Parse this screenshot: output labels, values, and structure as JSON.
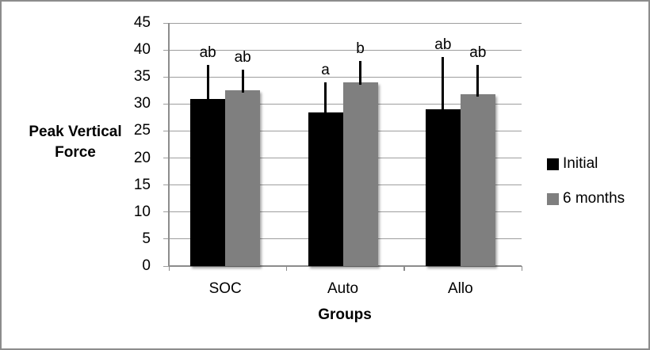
{
  "chart_data": {
    "type": "bar",
    "title": "",
    "categories": [
      "SOC",
      "Auto",
      "Allo"
    ],
    "series": [
      {
        "name": "Initial",
        "color": "#000000",
        "values": [
          31,
          28.5,
          29
        ],
        "error_up": [
          6.2,
          5.5,
          9.7
        ],
        "sig_labels": [
          "ab",
          "a",
          "ab"
        ]
      },
      {
        "name": "6 months",
        "color": "#7f7f7f",
        "values": [
          32.5,
          34,
          31.8
        ],
        "error_up": [
          3.9,
          4,
          5.4
        ],
        "sig_labels": [
          "ab",
          "b",
          "ab"
        ]
      }
    ],
    "xlabel": "Groups",
    "ylabel": "Peak Vertical Force",
    "ylabel_lines": [
      "Peak Vertical",
      "Force"
    ],
    "ylim": [
      0,
      45
    ],
    "ytick_step": 5,
    "yticks": [
      0,
      5,
      10,
      15,
      20,
      25,
      30,
      35,
      40,
      45
    ],
    "grid": true,
    "legend_position": "right",
    "frame_border_color": "#8c8c8c",
    "gridline_color": "#9e9e9e"
  }
}
